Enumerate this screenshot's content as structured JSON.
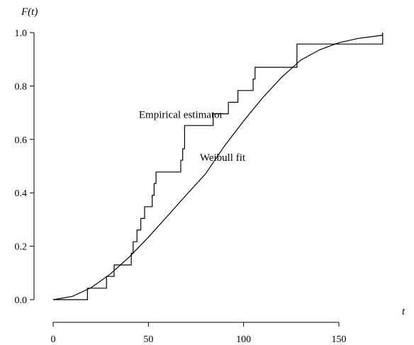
{
  "chart_data": {
    "type": "line",
    "title": "",
    "xlabel": "t",
    "ylabel": "F(t)",
    "xlim": [
      0,
      175
    ],
    "ylim": [
      0,
      1.0
    ],
    "xticks": [
      0,
      50,
      100,
      150
    ],
    "xtick_labels": [
      "0",
      "50",
      "100",
      "150"
    ],
    "yticks": [
      0.0,
      0.2,
      0.4,
      0.6,
      0.8,
      1.0
    ],
    "ytick_labels": [
      "0.0",
      "0.2",
      "0.4",
      "0.6",
      "0.8",
      "1.0"
    ],
    "grid": false,
    "annotations": [
      {
        "text": "Empirical estimator",
        "x": 45,
        "y": 0.68
      },
      {
        "text": "Weibull fit",
        "x": 77,
        "y": 0.52
      }
    ],
    "series": [
      {
        "style": "step",
        "x": [
          0,
          18,
          28,
          32,
          41,
          42,
          44,
          46,
          48,
          52,
          53,
          54,
          56,
          67,
          68,
          69,
          84,
          92,
          97,
          100,
          105,
          106,
          128,
          173
        ],
        "y": [
          0.0,
          0.043,
          0.087,
          0.13,
          0.174,
          0.217,
          0.261,
          0.304,
          0.348,
          0.391,
          0.435,
          0.478,
          0.478,
          0.522,
          0.565,
          0.652,
          0.696,
          0.739,
          0.783,
          0.783,
          0.826,
          0.87,
          0.957,
          1.0
        ]
      },
      {
        "style": "smooth",
        "x": [
          0,
          10,
          20,
          30,
          40,
          50,
          60,
          70,
          80,
          90,
          100,
          110,
          120,
          130,
          140,
          150,
          160,
          173
        ],
        "y": [
          0.0,
          0.012,
          0.045,
          0.096,
          0.16,
          0.234,
          0.313,
          0.393,
          0.471,
          0.576,
          0.669,
          0.756,
          0.833,
          0.897,
          0.936,
          0.962,
          0.978,
          0.99
        ]
      }
    ]
  }
}
